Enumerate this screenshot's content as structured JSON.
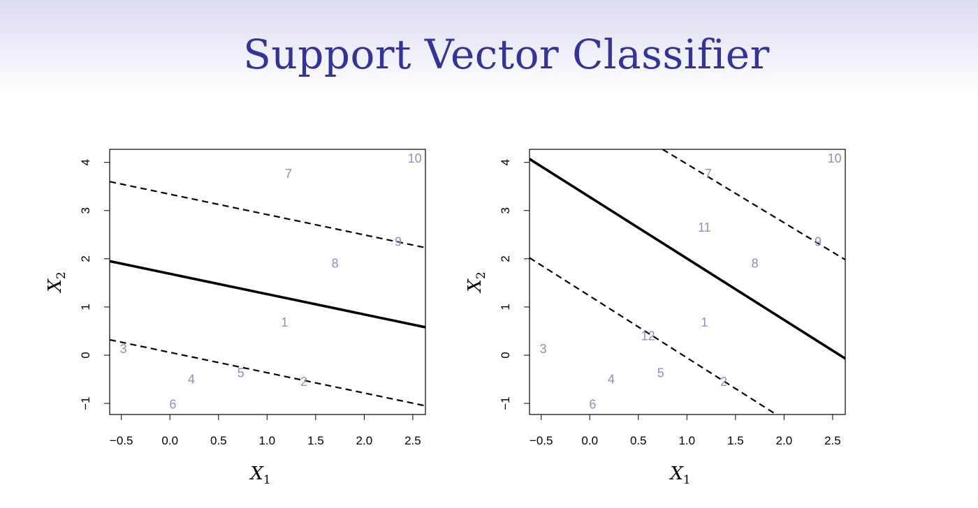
{
  "slide": {
    "title": "Support Vector Classifier",
    "title_color": "#33339b"
  },
  "chart_data": [
    {
      "type": "scatter",
      "xlabel": "X1",
      "ylabel": "X2",
      "xlim": [
        -0.62,
        2.63
      ],
      "ylim": [
        -1.23,
        4.27
      ],
      "xticks": [
        -0.5,
        0.0,
        0.5,
        1.0,
        1.5,
        2.0,
        2.5
      ],
      "yticks": [
        -1,
        0,
        1,
        2,
        3,
        4
      ],
      "xtick_labels": [
        "−0.5",
        "0.0",
        "0.5",
        "1.0",
        "1.5",
        "2.0",
        "2.5"
      ],
      "ytick_labels": [
        "−1",
        "0",
        "1",
        "2",
        "3",
        "4"
      ],
      "point_color": "#8e8ec4",
      "points": [
        {
          "label": "1",
          "x": 1.18,
          "y": 0.68
        },
        {
          "label": "2",
          "x": 1.38,
          "y": -0.55
        },
        {
          "label": "3",
          "x": -0.48,
          "y": 0.13
        },
        {
          "label": "4",
          "x": 0.22,
          "y": -0.5
        },
        {
          "label": "5",
          "x": 0.73,
          "y": -0.37
        },
        {
          "label": "6",
          "x": 0.03,
          "y": -1.02
        },
        {
          "label": "7",
          "x": 1.22,
          "y": 3.76
        },
        {
          "label": "8",
          "x": 1.7,
          "y": 1.9
        },
        {
          "label": "9",
          "x": 2.35,
          "y": 2.35
        },
        {
          "label": "10",
          "x": 2.52,
          "y": 4.08
        }
      ],
      "lines": [
        {
          "name": "hyperplane",
          "style": "solid",
          "p1": [
            -0.62,
            1.95
          ],
          "p2": [
            2.63,
            0.58
          ]
        },
        {
          "name": "margin-upper",
          "style": "dashed",
          "p1": [
            -0.62,
            3.6
          ],
          "p2": [
            2.63,
            2.23
          ]
        },
        {
          "name": "margin-lower",
          "style": "dashed",
          "p1": [
            -0.62,
            0.32
          ],
          "p2": [
            2.63,
            -1.05
          ]
        }
      ]
    },
    {
      "type": "scatter",
      "xlabel": "X1",
      "ylabel": "X2",
      "xlim": [
        -0.62,
        2.63
      ],
      "ylim": [
        -1.23,
        4.27
      ],
      "xticks": [
        -0.5,
        0.0,
        0.5,
        1.0,
        1.5,
        2.0,
        2.5
      ],
      "yticks": [
        -1,
        0,
        1,
        2,
        3,
        4
      ],
      "xtick_labels": [
        "−0.5",
        "0.0",
        "0.5",
        "1.0",
        "1.5",
        "2.0",
        "2.5"
      ],
      "ytick_labels": [
        "−1",
        "0",
        "1",
        "2",
        "3",
        "4"
      ],
      "point_color": "#8e8ec4",
      "points": [
        {
          "label": "1",
          "x": 1.18,
          "y": 0.68
        },
        {
          "label": "2",
          "x": 1.38,
          "y": -0.55
        },
        {
          "label": "3",
          "x": -0.48,
          "y": 0.13
        },
        {
          "label": "4",
          "x": 0.22,
          "y": -0.5
        },
        {
          "label": "5",
          "x": 0.73,
          "y": -0.37
        },
        {
          "label": "6",
          "x": 0.03,
          "y": -1.02
        },
        {
          "label": "7",
          "x": 1.22,
          "y": 3.76
        },
        {
          "label": "8",
          "x": 1.7,
          "y": 1.9
        },
        {
          "label": "9",
          "x": 2.35,
          "y": 2.35
        },
        {
          "label": "10",
          "x": 2.52,
          "y": 4.08
        },
        {
          "label": "11",
          "x": 1.18,
          "y": 2.65
        },
        {
          "label": "12",
          "x": 0.6,
          "y": 0.4
        }
      ],
      "lines": [
        {
          "name": "hyperplane",
          "style": "solid",
          "p1": [
            -0.62,
            4.07
          ],
          "p2": [
            2.63,
            -0.07
          ]
        },
        {
          "name": "margin-upper",
          "style": "dashed",
          "p1": [
            0.75,
            4.27
          ],
          "p2": [
            2.63,
            1.98
          ]
        },
        {
          "name": "margin-lower",
          "style": "dashed",
          "p1": [
            -0.62,
            2.02
          ],
          "p2": [
            1.92,
            -1.23
          ]
        }
      ]
    }
  ]
}
